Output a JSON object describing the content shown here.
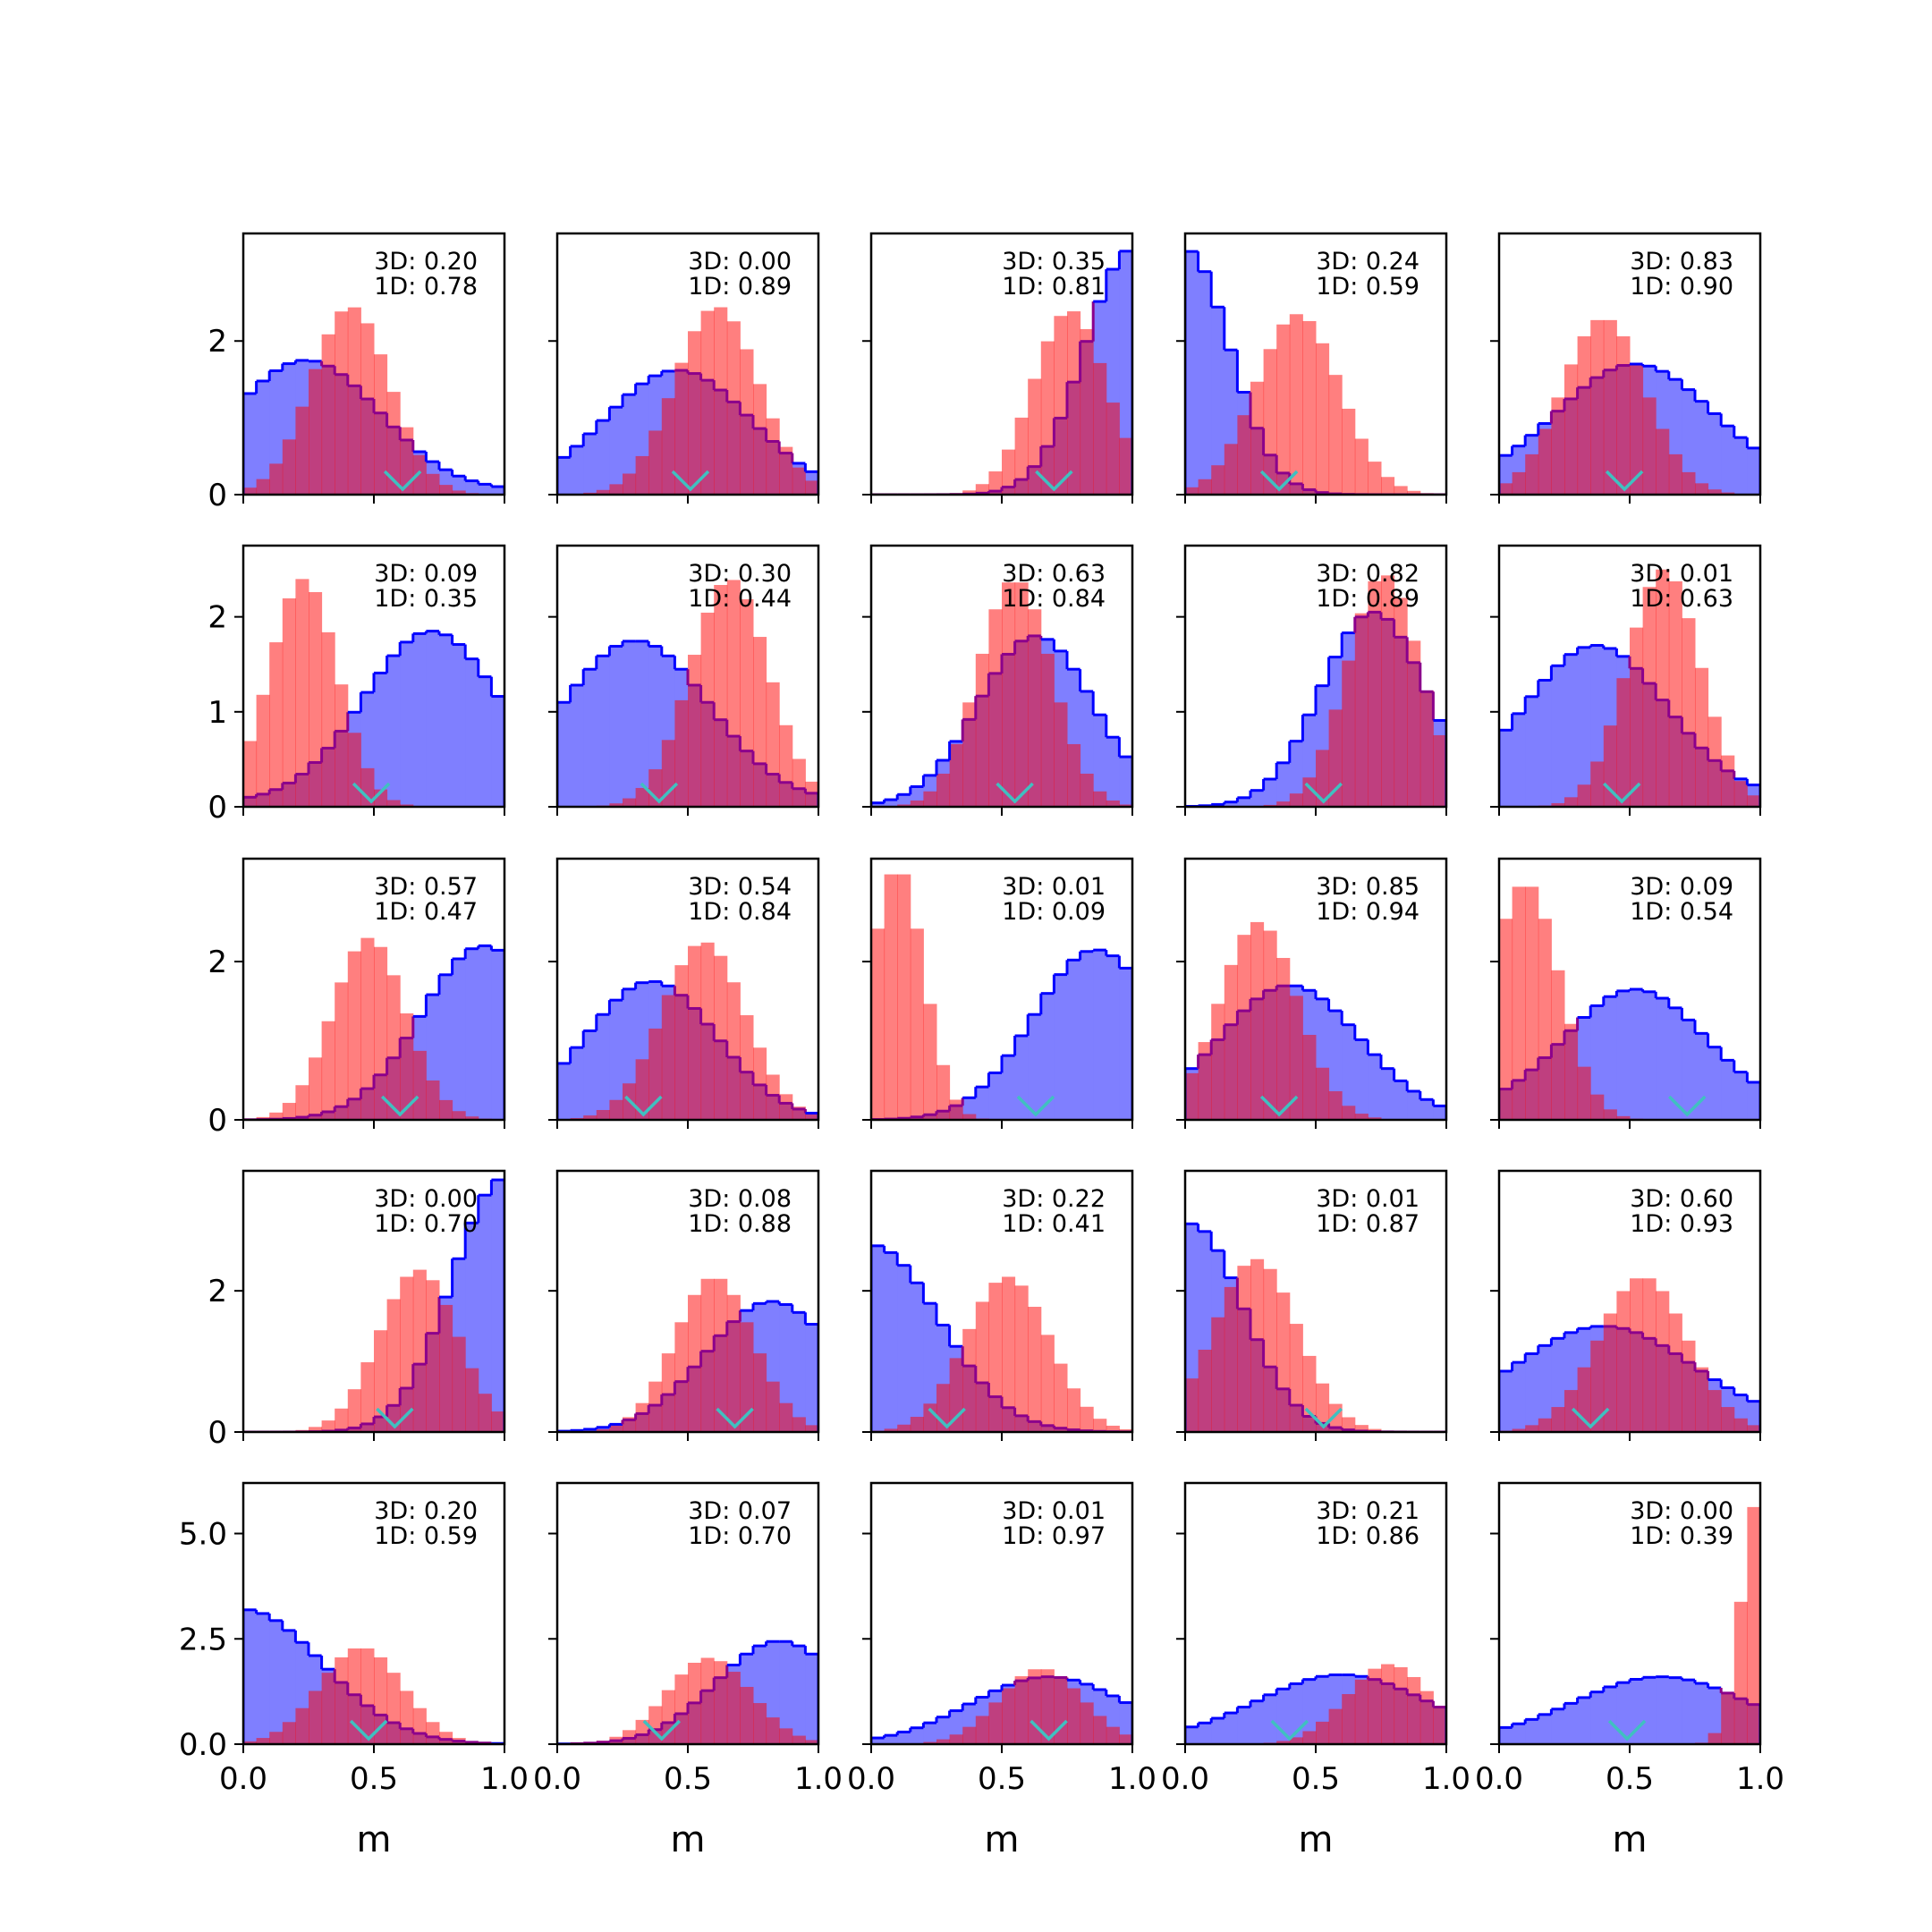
{
  "colors": {
    "blue_fill": "#7f7fff",
    "blue_edge": "#0000ff",
    "red_fill": "#ff7f7f",
    "overlap_edge": "#8b008b",
    "marker": "#40c0c0"
  },
  "chart_data": {
    "type": "grid-of-histograms",
    "rows": 5,
    "cols": 5,
    "xlabel": "m",
    "xlim": [
      0,
      1
    ],
    "xticks": [
      "0.0",
      "0.5",
      "1.0"
    ],
    "row_ylims": [
      [
        0,
        3.4
      ],
      [
        0,
        2.75
      ],
      [
        0,
        3.3
      ],
      [
        0,
        3.7
      ],
      [
        0,
        6.2
      ]
    ],
    "row_yticks": [
      [
        "0",
        "2"
      ],
      [
        "0",
        "1",
        "2"
      ],
      [
        "0",
        "2"
      ],
      [
        "0",
        "2"
      ],
      [
        "0.0",
        "2.5",
        "5.0"
      ]
    ],
    "row_ytick_values": [
      [
        0,
        2
      ],
      [
        0,
        1,
        2
      ],
      [
        0,
        2
      ],
      [
        0,
        2
      ],
      [
        0,
        2.5,
        5.0
      ]
    ],
    "panels": [
      {
        "annot": [
          "3D: 0.20",
          "1D: 0.78"
        ],
        "marker": 0.61,
        "blue": {
          "shape": "normal",
          "mu": 0.24,
          "sigma": 0.28,
          "peak": 1.75,
          "floor": 0.05
        },
        "red": {
          "shape": "normal",
          "mu": 0.41,
          "sigma": 0.15,
          "peak": 2.45,
          "floor": 0
        }
      },
      {
        "annot": [
          "3D: 0.00",
          "1D: 0.89"
        ],
        "marker": 0.51,
        "blue": {
          "shape": "normal",
          "mu": 0.46,
          "sigma": 0.28,
          "peak": 1.62,
          "floor": 0
        },
        "red": {
          "shape": "normal",
          "mu": 0.61,
          "sigma": 0.16,
          "peak": 2.45,
          "floor": 0
        }
      },
      {
        "annot": [
          "3D: 0.35",
          "1D: 0.81"
        ],
        "marker": 0.7,
        "blue": {
          "shape": "normal",
          "mu": 1.0,
          "sigma": 0.18,
          "peak": 3.2,
          "floor": 0
        },
        "red": {
          "shape": "normal",
          "mu": 0.76,
          "sigma": 0.14,
          "peak": 2.4,
          "floor": 0
        }
      },
      {
        "annot": [
          "3D: 0.24",
          "1D: 0.59"
        ],
        "marker": 0.36,
        "blue": {
          "shape": "normal",
          "mu": 0.0,
          "sigma": 0.17,
          "peak": 3.2,
          "floor": 0
        },
        "red": {
          "shape": "normal",
          "mu": 0.43,
          "sigma": 0.16,
          "peak": 2.35,
          "floor": 0
        }
      },
      {
        "annot": [
          "3D: 0.83",
          "1D: 0.90"
        ],
        "marker": 0.48,
        "blue": {
          "shape": "normal",
          "mu": 0.52,
          "sigma": 0.3,
          "peak": 1.7,
          "floor": 0.1
        },
        "red": {
          "shape": "normal",
          "mu": 0.4,
          "sigma": 0.16,
          "peak": 2.3,
          "floor": 0
        }
      },
      {
        "annot": [
          "3D: 0.09",
          "1D: 0.35"
        ],
        "marker": 0.49,
        "blue": {
          "shape": "normal",
          "mu": 0.72,
          "sigma": 0.26,
          "peak": 1.85,
          "floor": 0.05
        },
        "red": {
          "shape": "normal",
          "mu": 0.23,
          "sigma": 0.13,
          "peak": 2.4,
          "floor": 0
        }
      },
      {
        "annot": [
          "3D: 0.30",
          "1D: 0.44"
        ],
        "marker": 0.39,
        "blue": {
          "shape": "normal",
          "mu": 0.3,
          "sigma": 0.28,
          "peak": 1.75,
          "floor": 0.05
        },
        "red": {
          "shape": "normal",
          "mu": 0.66,
          "sigma": 0.15,
          "peak": 2.4,
          "floor": 0
        }
      },
      {
        "annot": [
          "3D: 0.63",
          "1D: 0.84"
        ],
        "marker": 0.55,
        "blue": {
          "shape": "normal",
          "mu": 0.63,
          "sigma": 0.22,
          "peak": 1.8,
          "floor": 0
        },
        "red": {
          "shape": "normal",
          "mu": 0.55,
          "sigma": 0.14,
          "peak": 2.4,
          "floor": 0
        }
      },
      {
        "annot": [
          "3D: 0.82",
          "1D: 0.89"
        ],
        "marker": 0.53,
        "blue": {
          "shape": "normal",
          "mu": 0.72,
          "sigma": 0.2,
          "peak": 2.05,
          "floor": 0
        },
        "red": {
          "shape": "normal",
          "mu": 0.76,
          "sigma": 0.14,
          "peak": 2.45,
          "floor": 0
        }
      },
      {
        "annot": [
          "3D: 0.01",
          "1D: 0.63"
        ],
        "marker": 0.47,
        "blue": {
          "shape": "normal",
          "mu": 0.37,
          "sigma": 0.27,
          "peak": 1.7,
          "floor": 0.1
        },
        "red": {
          "shape": "normal",
          "mu": 0.63,
          "sigma": 0.14,
          "peak": 2.5,
          "floor": 0
        }
      },
      {
        "annot": [
          "3D: 0.57",
          "1D: 0.47"
        ],
        "marker": 0.6,
        "blue": {
          "shape": "normal",
          "mu": 0.92,
          "sigma": 0.24,
          "peak": 2.2,
          "floor": 0
        },
        "red": {
          "shape": "normal",
          "mu": 0.48,
          "sigma": 0.14,
          "peak": 2.3,
          "floor": 0
        }
      },
      {
        "annot": [
          "3D: 0.54",
          "1D: 0.84"
        ],
        "marker": 0.33,
        "blue": {
          "shape": "normal",
          "mu": 0.36,
          "sigma": 0.25,
          "peak": 1.75,
          "floor": 0
        },
        "red": {
          "shape": "normal",
          "mu": 0.56,
          "sigma": 0.16,
          "peak": 2.25,
          "floor": 0
        }
      },
      {
        "annot": [
          "3D: 0.01",
          "1D: 0.09"
        ],
        "marker": 0.63,
        "blue": {
          "shape": "normal",
          "mu": 0.86,
          "sigma": 0.24,
          "peak": 2.15,
          "floor": 0
        },
        "red": {
          "shape": "normal",
          "mu": 0.1,
          "sigma": 0.1,
          "peak": 3.2,
          "floor": 0
        }
      },
      {
        "annot": [
          "3D: 0.85",
          "1D: 0.94"
        ],
        "marker": 0.36,
        "blue": {
          "shape": "normal",
          "mu": 0.4,
          "sigma": 0.27,
          "peak": 1.7,
          "floor": 0
        },
        "red": {
          "shape": "normal",
          "mu": 0.28,
          "sigma": 0.15,
          "peak": 2.5,
          "floor": 0
        }
      },
      {
        "annot": [
          "3D: 0.09",
          "1D: 0.54"
        ],
        "marker": 0.72,
        "blue": {
          "shape": "normal",
          "mu": 0.52,
          "sigma": 0.27,
          "peak": 1.65,
          "floor": 0.1
        },
        "red": {
          "shape": "normal",
          "mu": 0.1,
          "sigma": 0.13,
          "peak": 3.0,
          "floor": 0
        }
      },
      {
        "annot": [
          "3D: 0.00",
          "1D: 0.70"
        ],
        "marker": 0.58,
        "blue": {
          "shape": "normal",
          "mu": 1.0,
          "sigma": 0.2,
          "peak": 3.6,
          "floor": 0
        },
        "red": {
          "shape": "normal",
          "mu": 0.67,
          "sigma": 0.15,
          "peak": 2.3,
          "floor": 0
        }
      },
      {
        "annot": [
          "3D: 0.08",
          "1D: 0.88"
        ],
        "marker": 0.68,
        "blue": {
          "shape": "normal",
          "mu": 0.82,
          "sigma": 0.25,
          "peak": 1.85,
          "floor": 0
        },
        "red": {
          "shape": "normal",
          "mu": 0.6,
          "sigma": 0.15,
          "peak": 2.2,
          "floor": 0
        }
      },
      {
        "annot": [
          "3D: 0.22",
          "1D: 0.41"
        ],
        "marker": 0.29,
        "blue": {
          "shape": "normal",
          "mu": 0.0,
          "sigma": 0.26,
          "peak": 2.65,
          "floor": 0
        },
        "red": {
          "shape": "normal",
          "mu": 0.52,
          "sigma": 0.16,
          "peak": 2.2,
          "floor": 0
        }
      },
      {
        "annot": [
          "3D: 0.01",
          "1D: 0.87"
        ],
        "marker": 0.53,
        "blue": {
          "shape": "normal",
          "mu": 0.02,
          "sigma": 0.2,
          "peak": 2.95,
          "floor": 0
        },
        "red": {
          "shape": "normal",
          "mu": 0.27,
          "sigma": 0.16,
          "peak": 2.45,
          "floor": 0
        }
      },
      {
        "annot": [
          "3D: 0.60",
          "1D: 0.93"
        ],
        "marker": 0.35,
        "blue": {
          "shape": "normal",
          "mu": 0.4,
          "sigma": 0.34,
          "peak": 1.5,
          "floor": 0.1
        },
        "red": {
          "shape": "normal",
          "mu": 0.55,
          "sigma": 0.17,
          "peak": 2.2,
          "floor": 0
        }
      },
      {
        "annot": [
          "3D: 0.20",
          "1D: 0.59"
        ],
        "marker": 0.48,
        "blue": {
          "shape": "normal",
          "mu": 0.0,
          "sigma": 0.3,
          "peak": 3.2,
          "floor": 0
        },
        "red": {
          "shape": "normal",
          "mu": 0.45,
          "sigma": 0.16,
          "peak": 2.3,
          "floor": 0
        }
      },
      {
        "annot": [
          "3D: 0.07",
          "1D: 0.70"
        ],
        "marker": 0.4,
        "blue": {
          "shape": "normal",
          "mu": 0.85,
          "sigma": 0.24,
          "peak": 2.45,
          "floor": 0
        },
        "red": {
          "shape": "normal",
          "mu": 0.58,
          "sigma": 0.16,
          "peak": 2.05,
          "floor": 0
        }
      },
      {
        "annot": [
          "3D: 0.01",
          "1D: 0.97"
        ],
        "marker": 0.68,
        "blue": {
          "shape": "normal",
          "mu": 0.68,
          "sigma": 0.3,
          "peak": 1.6,
          "floor": 0
        },
        "red": {
          "shape": "normal",
          "mu": 0.65,
          "sigma": 0.16,
          "peak": 1.8,
          "floor": 0
        }
      },
      {
        "annot": [
          "3D: 0.21",
          "1D: 0.86"
        ],
        "marker": 0.4,
        "blue": {
          "shape": "normal",
          "mu": 0.6,
          "sigma": 0.32,
          "peak": 1.65,
          "floor": 0.1
        },
        "red": {
          "shape": "normal",
          "mu": 0.78,
          "sigma": 0.16,
          "peak": 1.9,
          "floor": 0
        }
      },
      {
        "annot": [
          "3D: 0.00",
          "1D: 0.39"
        ],
        "marker": 0.49,
        "blue": {
          "shape": "normal",
          "mu": 0.62,
          "sigma": 0.33,
          "peak": 1.6,
          "floor": 0.1
        },
        "red": {
          "shape": "normal",
          "mu": 1.0,
          "sigma": 0.07,
          "peak": 6.0,
          "floor": 0
        }
      }
    ]
  }
}
